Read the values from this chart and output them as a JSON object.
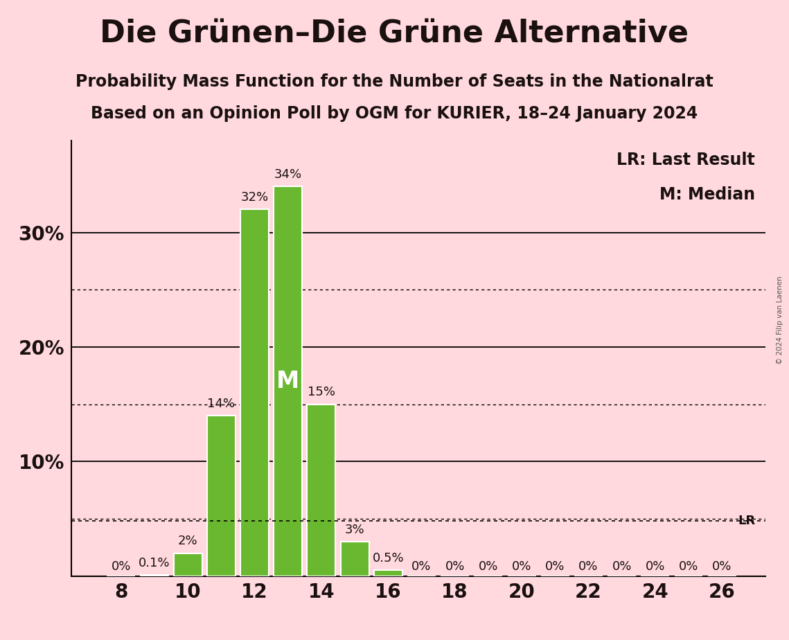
{
  "title": "Die Grünen–Die Grüne Alternative",
  "subtitle1": "Probability Mass Function for the Number of Seats in the Nationalrat",
  "subtitle2": "Based on an Opinion Poll by OGM for KURIER, 18–24 January 2024",
  "copyright": "© 2024 Filip van Laenen",
  "seats": [
    8,
    9,
    10,
    11,
    12,
    13,
    14,
    15,
    16,
    17,
    18,
    19,
    20,
    21,
    22,
    23,
    24,
    25,
    26
  ],
  "probabilities": [
    0.0,
    0.1,
    2.0,
    14.0,
    32.0,
    34.0,
    15.0,
    3.0,
    0.5,
    0.0,
    0.0,
    0.0,
    0.0,
    0.0,
    0.0,
    0.0,
    0.0,
    0.0,
    0.0
  ],
  "bar_labels": [
    "0%",
    "0.1%",
    "2%",
    "14%",
    "32%",
    "34%",
    "15%",
    "3%",
    "0.5%",
    "0%",
    "0%",
    "0%",
    "0%",
    "0%",
    "0%",
    "0%",
    "0%",
    "0%",
    "0%"
  ],
  "bar_color": "#6ab830",
  "background_color": "#ffd9de",
  "text_color": "#1a1a1a",
  "title_color": "#1a1010",
  "median_seat": 13,
  "last_result_pct": 4.8,
  "yticks": [
    0,
    10,
    20,
    30
  ],
  "ytick_labels": [
    "",
    "10%",
    "20%",
    "30%"
  ],
  "dotted_yticks": [
    5,
    15,
    25
  ],
  "ymax": 38,
  "xlabel_seats": [
    8,
    10,
    12,
    14,
    16,
    18,
    20,
    22,
    24,
    26
  ],
  "lr_label": "LR: Last Result",
  "median_label": "M: Median",
  "median_text": "M",
  "title_fontsize": 32,
  "subtitle_fontsize": 17,
  "axis_fontsize": 20,
  "legend_fontsize": 17,
  "bar_label_fontsize": 13,
  "median_fontsize": 24
}
